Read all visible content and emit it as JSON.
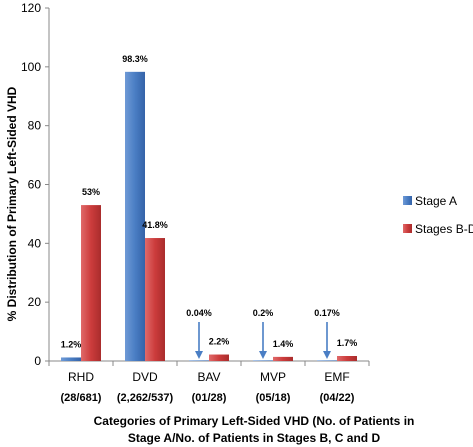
{
  "chart_data": {
    "type": "bar",
    "categories": [
      "RHD",
      "DVD",
      "BAV",
      "MVP",
      "EMF"
    ],
    "category_counts": [
      "(28/681)",
      "(2,262/537)",
      "(01/28)",
      "(05/18)",
      "(04/22)"
    ],
    "series": [
      {
        "name": "Stage A",
        "color": "#4a7ec4",
        "values": [
          1.2,
          98.3,
          0.04,
          0.2,
          0.17
        ],
        "labels": [
          "1.2%",
          "98.3%",
          "0.04%",
          "0.2%",
          "0.17%"
        ]
      },
      {
        "name": "Stages B-D",
        "color": "#cc3c3c",
        "values": [
          53,
          41.8,
          2.2,
          1.4,
          1.7
        ],
        "labels": [
          "53%",
          "41.8%",
          "2.2%",
          "1.4%",
          "1.7%"
        ]
      }
    ],
    "arrow_categories": [
      2,
      3,
      4
    ],
    "ylabel": "% Distribution of Primary Left-Sided VHD",
    "xlabel_line1": "Categories of Primary Left-Sided VHD (No. of Patients in",
    "xlabel_line2": "Stage A/No. of Patients in Stages B, C and D",
    "ylim": [
      0,
      120
    ],
    "yticks": [
      0,
      20,
      40,
      60,
      80,
      100,
      120
    ],
    "grid": false,
    "legend_position": "right"
  }
}
